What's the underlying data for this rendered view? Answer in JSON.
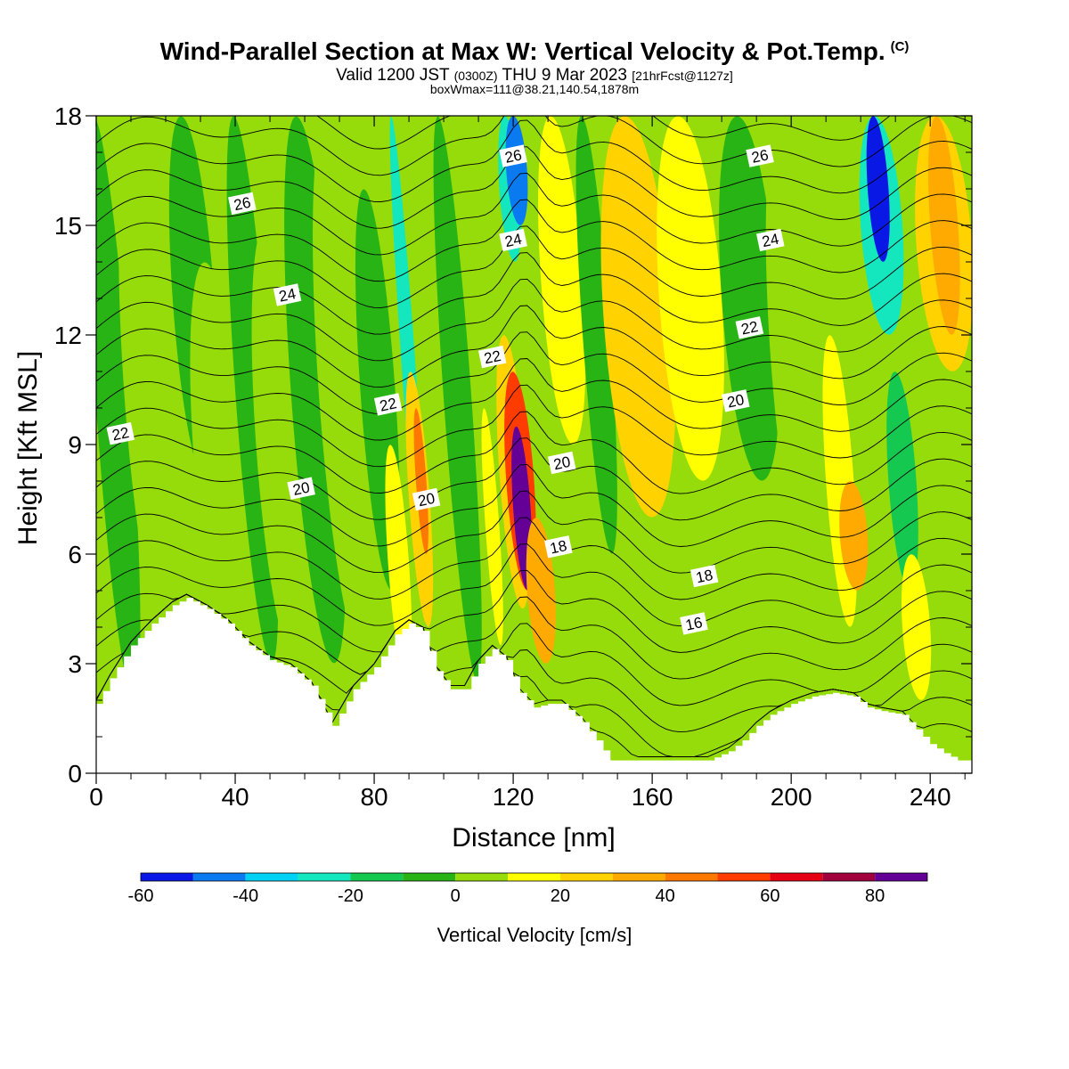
{
  "title": {
    "line1": "Wind-Parallel Section at Max W: Vertical Velocity & Pot.Temp.",
    "line1_mark": "(C)",
    "line2_main": "Valid 1200 JST",
    "line2_utc": "(0300Z)",
    "line2_date": "THU 9 Mar 2023",
    "line2_fcst": "[21hrFcst@1127z]",
    "line3": "boxWmax=111@38.21,140.54,1878m"
  },
  "chart_data": {
    "type": "heatmap",
    "xlabel": "Distance [nm]",
    "ylabel": "Height [Kft MSL]",
    "xlim": [
      0,
      252
    ],
    "ylim": [
      0,
      18
    ],
    "x_ticks": [
      "0",
      "40",
      "80",
      "120",
      "160",
      "200",
      "240"
    ],
    "y_ticks": [
      "0",
      "3",
      "6",
      "9",
      "12",
      "15",
      "18"
    ],
    "colorbar": {
      "title": "Vertical Velocity [cm/s]",
      "levels": [
        -60,
        -50,
        -40,
        -30,
        -20,
        -10,
        0,
        10,
        20,
        30,
        40,
        50,
        60,
        70,
        80,
        90
      ],
      "tick_labels": [
        "-60",
        "-40",
        "-20",
        "0",
        "20",
        "40",
        "60",
        "80"
      ],
      "colors": [
        "#0a18e6",
        "#0a7af0",
        "#00d2f5",
        "#14e6be",
        "#14c850",
        "#28b414",
        "#96dc0a",
        "#ffff00",
        "#ffd200",
        "#ffaa00",
        "#ff7800",
        "#ff3c00",
        "#e60014",
        "#a0003c",
        "#640096"
      ]
    },
    "w_field": {
      "background": 0,
      "terrain": [
        [
          0,
          1.9
        ],
        [
          4,
          2.6
        ],
        [
          10,
          3.5
        ],
        [
          16,
          4.1
        ],
        [
          22,
          4.6
        ],
        [
          26,
          4.8
        ],
        [
          32,
          4.5
        ],
        [
          38,
          4.1
        ],
        [
          44,
          3.5
        ],
        [
          50,
          3.1
        ],
        [
          56,
          2.9
        ],
        [
          62,
          2.4
        ],
        [
          68,
          1.3
        ],
        [
          74,
          2.3
        ],
        [
          80,
          2.9
        ],
        [
          86,
          3.8
        ],
        [
          90,
          4.1
        ],
        [
          94,
          3.9
        ],
        [
          98,
          2.8
        ],
        [
          102,
          2.3
        ],
        [
          106,
          2.3
        ],
        [
          110,
          3.0
        ],
        [
          114,
          3.4
        ],
        [
          118,
          3.1
        ],
        [
          122,
          2.2
        ],
        [
          126,
          1.8
        ],
        [
          130,
          1.9
        ],
        [
          134,
          1.9
        ],
        [
          140,
          1.4
        ],
        [
          144,
          0.9
        ],
        [
          148,
          0.35
        ],
        [
          156,
          0.35
        ],
        [
          164,
          0.35
        ],
        [
          170,
          0.35
        ],
        [
          176,
          0.35
        ],
        [
          182,
          0.6
        ],
        [
          186,
          0.9
        ],
        [
          190,
          1.3
        ],
        [
          194,
          1.6
        ],
        [
          200,
          1.9
        ],
        [
          206,
          2.1
        ],
        [
          212,
          2.2
        ],
        [
          218,
          2.1
        ],
        [
          222,
          1.8
        ],
        [
          226,
          1.7
        ],
        [
          232,
          1.6
        ],
        [
          236,
          1.2
        ],
        [
          240,
          0.8
        ],
        [
          244,
          0.55
        ],
        [
          248,
          0.35
        ],
        [
          252,
          0.35
        ]
      ],
      "bands": [
        {
          "x": [
            0,
            10
          ],
          "y": [
            2,
            18
          ],
          "w": -10
        },
        {
          "x": [
            8,
            26
          ],
          "y": [
            3,
            18
          ],
          "w": 5
        },
        {
          "x": [
            22,
            34
          ],
          "y": [
            8,
            18
          ],
          "w": -10
        },
        {
          "x": [
            28,
            42
          ],
          "y": [
            3.5,
            14
          ],
          "w": 5
        },
        {
          "x": [
            40,
            50
          ],
          "y": [
            3,
            18
          ],
          "w": -10
        },
        {
          "x": [
            46,
            60
          ],
          "y": [
            3,
            15
          ],
          "w": 5
        },
        {
          "x": [
            56,
            70
          ],
          "y": [
            3,
            18
          ],
          "w": -10
        },
        {
          "x": [
            64,
            80
          ],
          "y": [
            3,
            18
          ],
          "w": 5
        },
        {
          "x": [
            76,
            86
          ],
          "y": [
            5,
            16
          ],
          "w": -10
        },
        {
          "x": [
            84,
            90
          ],
          "y": [
            2.5,
            9
          ],
          "w": 12
        },
        {
          "x": [
            88,
            92
          ],
          "y": [
            4,
            18
          ],
          "w": -25
        },
        {
          "x": [
            90,
            96
          ],
          "y": [
            4,
            11
          ],
          "w": 25
        },
        {
          "x": [
            92,
            95
          ],
          "y": [
            6,
            10
          ],
          "w": 45
        },
        {
          "x": [
            94,
            100
          ],
          "y": [
            12,
            18
          ],
          "w": 5
        },
        {
          "x": [
            100,
            108
          ],
          "y": [
            2.5,
            18
          ],
          "w": -10
        },
        {
          "x": [
            108,
            118
          ],
          "y": [
            10,
            18
          ],
          "w": 5
        },
        {
          "x": [
            112,
            116
          ],
          "y": [
            3.5,
            10
          ],
          "w": 12
        },
        {
          "x": [
            116,
            122
          ],
          "y": [
            14,
            18
          ],
          "w": -30
        },
        {
          "x": [
            118,
            124
          ],
          "y": [
            15,
            18
          ],
          "w": -50
        },
        {
          "x": [
            116,
            124
          ],
          "y": [
            4.5,
            12
          ],
          "w": 25
        },
        {
          "x": [
            118,
            126
          ],
          "y": [
            5,
            11
          ],
          "w": 55
        },
        {
          "x": [
            120,
            125
          ],
          "y": [
            5,
            9.5
          ],
          "w": 85
        },
        {
          "x": [
            124,
            132
          ],
          "y": [
            3,
            7
          ],
          "w": 35
        },
        {
          "x": [
            128,
            140
          ],
          "y": [
            9,
            18
          ],
          "w": 15
        },
        {
          "x": [
            140,
            148
          ],
          "y": [
            6,
            18
          ],
          "w": -5
        },
        {
          "x": [
            146,
            166
          ],
          "y": [
            7,
            18
          ],
          "w": 20
        },
        {
          "x": [
            162,
            180
          ],
          "y": [
            8,
            18
          ],
          "w": 15
        },
        {
          "x": [
            172,
            186
          ],
          "y": [
            3,
            7
          ],
          "w": 5
        },
        {
          "x": [
            180,
            196
          ],
          "y": [
            8,
            18
          ],
          "w": -10
        },
        {
          "x": [
            194,
            210
          ],
          "y": [
            5,
            18
          ],
          "w": 5
        },
        {
          "x": [
            210,
            218
          ],
          "y": [
            4,
            12
          ],
          "w": 12
        },
        {
          "x": [
            214,
            222
          ],
          "y": [
            5,
            8
          ],
          "w": 32
        },
        {
          "x": [
            220,
            232
          ],
          "y": [
            12,
            18
          ],
          "w": -25
        },
        {
          "x": [
            222,
            228
          ],
          "y": [
            14,
            18
          ],
          "w": -55
        },
        {
          "x": [
            228,
            236
          ],
          "y": [
            5,
            11
          ],
          "w": -20
        },
        {
          "x": [
            232,
            240
          ],
          "y": [
            2,
            6
          ],
          "w": 12
        },
        {
          "x": [
            236,
            252
          ],
          "y": [
            11,
            18
          ],
          "w": 22
        },
        {
          "x": [
            240,
            248
          ],
          "y": [
            12,
            18
          ],
          "w": 35
        }
      ]
    },
    "theta_contours": {
      "units": "C",
      "levels": [
        15,
        15.5,
        16,
        16.5,
        17,
        17.5,
        18,
        18.5,
        19,
        19.5,
        20,
        20.5,
        21,
        21.5,
        22,
        22.5,
        23,
        23.5,
        24,
        24.5,
        25,
        25.5,
        26,
        26.5,
        27
      ],
      "labels": [
        {
          "text": "26",
          "x": 42,
          "y": 15.6
        },
        {
          "text": "26",
          "x": 120,
          "y": 16.9
        },
        {
          "text": "26",
          "x": 191,
          "y": 16.9
        },
        {
          "text": "24",
          "x": 55,
          "y": 13.1
        },
        {
          "text": "24",
          "x": 120,
          "y": 14.6
        },
        {
          "text": "24",
          "x": 194,
          "y": 14.6
        },
        {
          "text": "22",
          "x": 7,
          "y": 9.3
        },
        {
          "text": "22",
          "x": 84,
          "y": 10.1
        },
        {
          "text": "22",
          "x": 114,
          "y": 11.4
        },
        {
          "text": "22",
          "x": 188,
          "y": 12.2
        },
        {
          "text": "20",
          "x": 59,
          "y": 7.8
        },
        {
          "text": "20",
          "x": 95,
          "y": 7.5
        },
        {
          "text": "20",
          "x": 134,
          "y": 8.5
        },
        {
          "text": "20",
          "x": 184,
          "y": 10.2
        },
        {
          "text": "18",
          "x": 133,
          "y": 6.2
        },
        {
          "text": "18",
          "x": 175,
          "y": 5.4
        },
        {
          "text": "16",
          "x": 172,
          "y": 4.1
        }
      ]
    }
  }
}
